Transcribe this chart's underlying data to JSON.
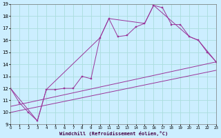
{
  "xlabel": "Windchill (Refroidissement éolien,°C)",
  "xlim": [
    0,
    23
  ],
  "ylim": [
    9,
    19
  ],
  "yticks": [
    9,
    10,
    11,
    12,
    13,
    14,
    15,
    16,
    17,
    18,
    19
  ],
  "xticks": [
    0,
    1,
    2,
    3,
    4,
    5,
    6,
    7,
    8,
    9,
    10,
    11,
    12,
    13,
    14,
    15,
    16,
    17,
    18,
    19,
    20,
    21,
    22,
    23
  ],
  "background_color": "#cceeff",
  "grid_color": "#aadddd",
  "line_color": "#993399",
  "main_series_x": [
    0,
    1,
    2,
    3,
    4,
    5,
    6,
    7,
    8,
    9,
    10,
    11,
    12,
    13,
    14,
    15,
    16,
    17,
    18,
    19,
    20,
    21,
    22,
    23
  ],
  "main_series_y": [
    12.0,
    10.8,
    10.0,
    9.3,
    11.9,
    11.9,
    12.0,
    12.0,
    13.0,
    12.8,
    16.2,
    17.8,
    16.3,
    16.4,
    17.1,
    17.4,
    18.9,
    18.7,
    17.3,
    17.3,
    16.3,
    16.0,
    15.0,
    14.2
  ],
  "envelope_x": [
    0,
    3,
    4,
    10,
    11,
    15,
    16,
    20,
    21,
    23
  ],
  "envelope_y": [
    12.0,
    9.3,
    11.9,
    16.2,
    17.8,
    17.4,
    18.9,
    16.3,
    16.0,
    14.2
  ],
  "trend1_x": [
    0,
    23
  ],
  "trend1_y": [
    10.0,
    13.5
  ],
  "trend2_x": [
    0,
    23
  ],
  "trend2_y": [
    10.5,
    14.2
  ]
}
